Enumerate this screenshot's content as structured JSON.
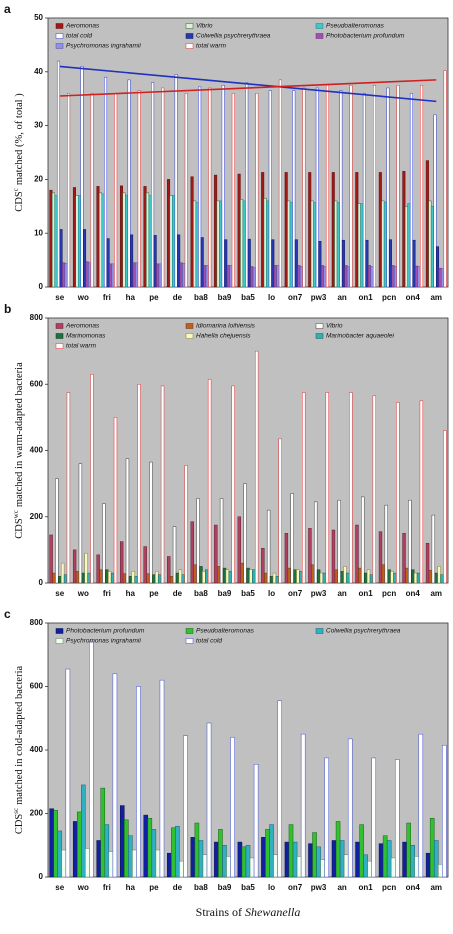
{
  "chart_data": [
    {
      "type": "bar",
      "panel": "a",
      "ylabel": "CDS",
      "ylabel_sup": "c",
      "ylabel_rest": "matched (%, of total )",
      "categories": [
        "se",
        "wo",
        "fri",
        "ha",
        "pe",
        "de",
        "ba8",
        "ba9",
        "ba5",
        "lo",
        "on7",
        "pw3",
        "an",
        "on1",
        "pcn",
        "on4",
        "am"
      ],
      "ylim": [
        0,
        50
      ],
      "yticks": [
        0,
        10,
        20,
        30,
        40,
        50
      ],
      "series": [
        {
          "name": "Aeromonas",
          "color": "#a01818",
          "edge": "#601010",
          "values": [
            18,
            18.5,
            18.7,
            18.8,
            18.7,
            20,
            20.5,
            20.8,
            21,
            21.3,
            21.3,
            21.3,
            21.3,
            21.3,
            21.3,
            21.5,
            23.5
          ]
        },
        {
          "name": "Vibrio",
          "color": "#dff0d8",
          "edge": "#306030",
          "values": [
            17.5,
            17,
            17.5,
            17.5,
            17.5,
            17,
            16,
            16,
            16.3,
            16.5,
            16,
            16,
            16,
            15.5,
            16,
            15,
            16
          ]
        },
        {
          "name": "Pseudoalteromonas",
          "color": "#40c8c8",
          "edge": "#208080",
          "values": [
            17,
            17,
            17.3,
            17,
            17,
            17,
            15.7,
            16,
            16,
            16,
            15.7,
            15.7,
            15.7,
            15.5,
            15.8,
            15.5,
            15
          ]
        },
        {
          "name": "total cold",
          "color": "#ffffff",
          "edge": "#3040d0",
          "values": [
            42,
            41,
            39,
            38.5,
            38,
            39.5,
            37.2,
            37.5,
            38,
            36.5,
            36.5,
            37,
            36.5,
            36,
            37,
            36,
            32
          ]
        },
        {
          "name": "Colwellia psychrerythraea",
          "color": "#2838b0",
          "edge": "#101860",
          "values": [
            10.7,
            10.7,
            9,
            9.7,
            9.6,
            9.7,
            9.2,
            8.8,
            8.9,
            8.8,
            8.8,
            8.5,
            8.7,
            8.7,
            8.8,
            8.7,
            7.5
          ]
        },
        {
          "name": "Photobacterium profundum",
          "color": "#a050b0",
          "edge": "#603070",
          "values": [
            4.5,
            4.7,
            4.3,
            4.5,
            4.3,
            4.5,
            4,
            4,
            3.8,
            4,
            4,
            4,
            4,
            4,
            4,
            3.9,
            3.5
          ]
        },
        {
          "name": "Psychromonas ingrahamii",
          "color": "#9090e8",
          "edge": "#5050a0",
          "values": [
            4.4,
            4.5,
            4.3,
            4.5,
            4.3,
            4.4,
            4,
            4,
            3.6,
            4,
            3.8,
            3.8,
            3.8,
            3.8,
            3.8,
            3.8,
            3.4
          ]
        },
        {
          "name": "total warm",
          "color": "#ffffff",
          "edge": "#e03030",
          "values": [
            36,
            36,
            36,
            36.5,
            37,
            36,
            37,
            36,
            36,
            38.5,
            37,
            37.5,
            37.5,
            37.5,
            37.5,
            37.5,
            40.2
          ]
        }
      ],
      "trend_lines": [
        {
          "color": "#2030c0",
          "values": [
            41,
            34.5
          ]
        },
        {
          "color": "#d02020",
          "values": [
            35.5,
            38.5
          ]
        }
      ]
    },
    {
      "type": "bar",
      "panel": "b",
      "ylabel": "CDS",
      "ylabel_sup": "wc",
      "ylabel_rest": "matched in warm-adapted bacteria",
      "categories": [
        "se",
        "wo",
        "fri",
        "ha",
        "pe",
        "de",
        "ba8",
        "ba9",
        "ba5",
        "lo",
        "on7",
        "pw3",
        "an",
        "on1",
        "pcn",
        "on4",
        "am"
      ],
      "ylim": [
        0,
        800
      ],
      "yticks": [
        0,
        200,
        400,
        600,
        800
      ],
      "series": [
        {
          "name": "Aeromonas",
          "color": "#b04060",
          "edge": "#602030",
          "values": [
            145,
            100,
            85,
            125,
            110,
            80,
            185,
            175,
            200,
            105,
            150,
            165,
            160,
            175,
            155,
            150,
            120
          ]
        },
        {
          "name": "Idiomarina loihiensis",
          "color": "#c06020",
          "edge": "#703010",
          "values": [
            30,
            35,
            40,
            28,
            28,
            20,
            55,
            50,
            60,
            30,
            45,
            55,
            40,
            45,
            55,
            45,
            38
          ]
        },
        {
          "name": "Vibrio",
          "color": "#ffffff",
          "edge": "#404040",
          "values": [
            315,
            360,
            240,
            375,
            365,
            170,
            255,
            255,
            300,
            220,
            270,
            245,
            250,
            260,
            235,
            250,
            205
          ]
        },
        {
          "name": "Marinomonas",
          "color": "#207040",
          "edge": "#103820",
          "values": [
            20,
            30,
            40,
            20,
            25,
            30,
            50,
            45,
            45,
            20,
            40,
            40,
            35,
            30,
            40,
            40,
            30
          ]
        },
        {
          "name": "Hahella chejuensis",
          "color": "#f8f8c0",
          "edge": "#808040",
          "values": [
            60,
            90,
            35,
            35,
            35,
            40,
            35,
            40,
            40,
            30,
            40,
            30,
            50,
            40,
            35,
            30,
            50
          ]
        },
        {
          "name": "Marinobacter aquaeolei",
          "color": "#30b0b0",
          "edge": "#186060",
          "values": [
            25,
            30,
            30,
            20,
            25,
            25,
            40,
            35,
            40,
            20,
            35,
            30,
            30,
            25,
            30,
            30,
            25
          ]
        },
        {
          "name": "total warm",
          "color": "#ffffff",
          "edge": "#e03030",
          "values": [
            575,
            630,
            500,
            600,
            595,
            355,
            615,
            595,
            700,
            435,
            575,
            575,
            575,
            565,
            545,
            550,
            460
          ]
        }
      ]
    },
    {
      "type": "bar",
      "panel": "c",
      "ylabel": "CDS",
      "ylabel_sup": "sc",
      "ylabel_rest": "matched in cold-adapted bacteria",
      "categories": [
        "se",
        "wo",
        "fri",
        "ha",
        "pe",
        "de",
        "ba8",
        "ba9",
        "ba5",
        "lo",
        "on7",
        "pw3",
        "an",
        "on1",
        "pcn",
        "on4",
        "am"
      ],
      "ylim": [
        0,
        800
      ],
      "yticks": [
        0,
        200,
        400,
        600,
        800
      ],
      "series": [
        {
          "name": "Photobacterium profundum",
          "color": "#1020a0",
          "edge": "#081050",
          "values": [
            215,
            175,
            115,
            225,
            195,
            75,
            125,
            110,
            110,
            125,
            110,
            105,
            115,
            110,
            105,
            110,
            75
          ]
        },
        {
          "name": "Pseudoalteromonas",
          "color": "#30c030",
          "edge": "#186018",
          "values": [
            210,
            205,
            280,
            180,
            185,
            155,
            170,
            150,
            95,
            150,
            165,
            140,
            175,
            165,
            130,
            170,
            185
          ]
        },
        {
          "name": "Colwellia psychrerythraea",
          "color": "#30b0c0",
          "edge": "#186070",
          "values": [
            145,
            290,
            165,
            130,
            150,
            160,
            115,
            100,
            100,
            165,
            110,
            95,
            115,
            70,
            115,
            100,
            115
          ]
        },
        {
          "name": "Psychromonas ingrahamii",
          "color": "#f0fff0",
          "edge": "#608060",
          "values": [
            85,
            90,
            80,
            85,
            85,
            50,
            70,
            65,
            60,
            70,
            65,
            55,
            70,
            50,
            60,
            65,
            40
          ]
        },
        {
          "name": "total cold",
          "color": "#ffffff",
          "edge": "#4050d0",
          "values": [
            655,
            740,
            640,
            600,
            620,
            445,
            485,
            440,
            355,
            555,
            450,
            375,
            435,
            375,
            370,
            450,
            415
          ]
        }
      ],
      "xlabel": "Strains of",
      "xlabel_italic": "Shewanella"
    }
  ]
}
